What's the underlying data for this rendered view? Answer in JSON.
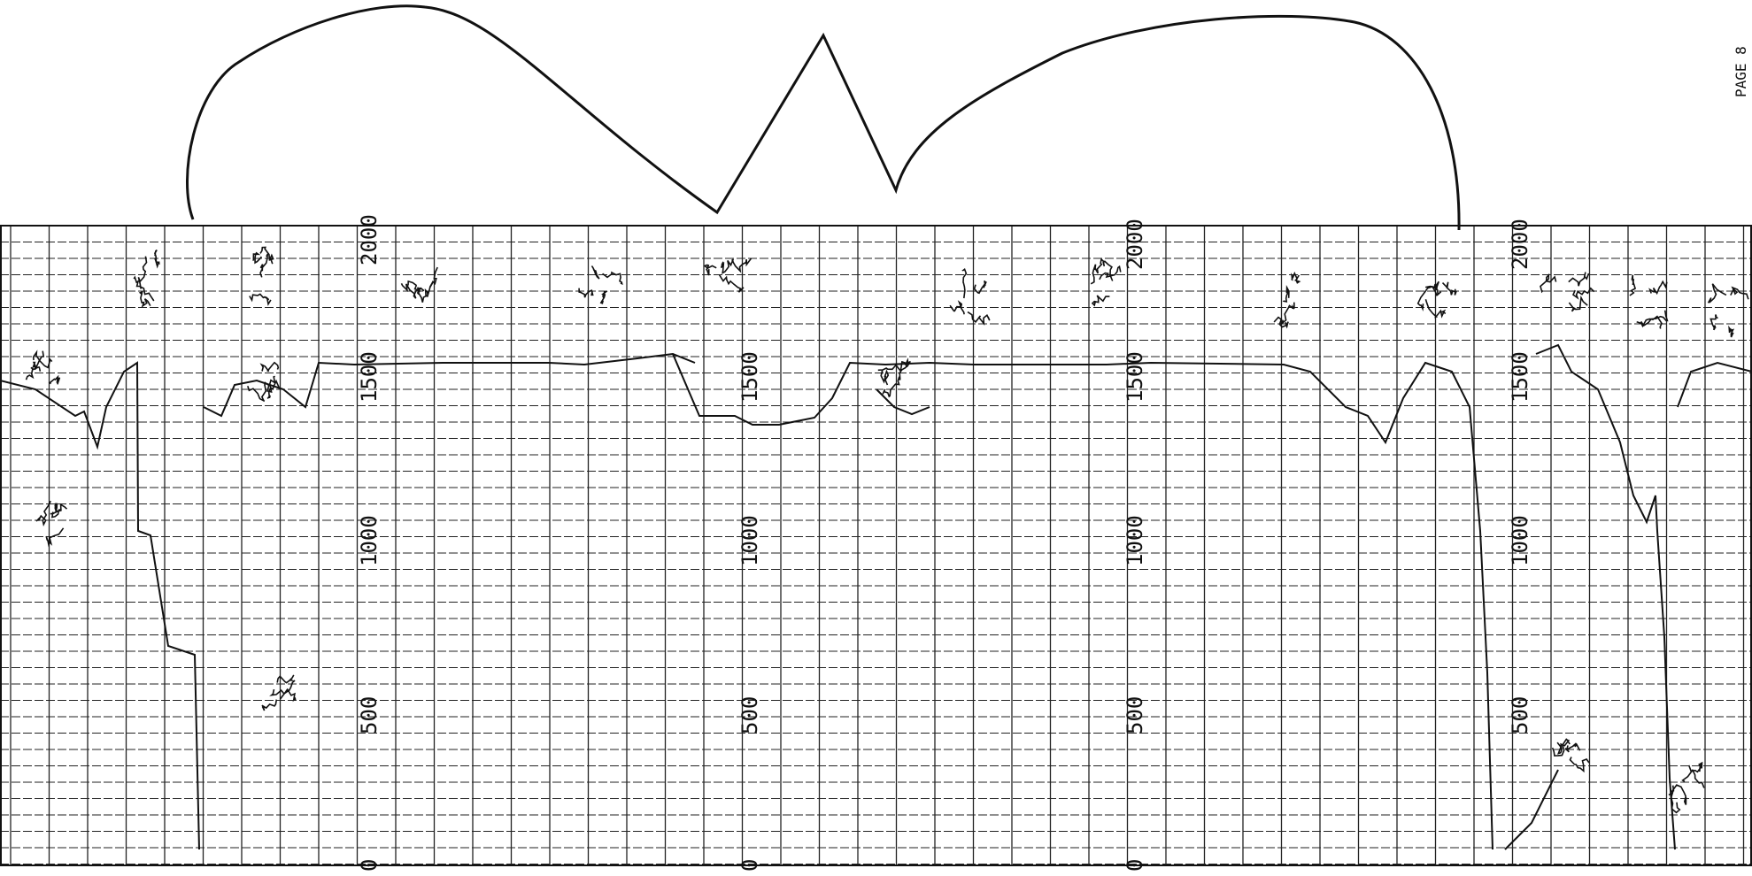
{
  "document": {
    "type": "strip chart recording sheet (scanned)",
    "page_ref": "PAGE 8",
    "ink_color": "#111111",
    "paper_color": "#ffffff",
    "scale_tick_labels": [
      "0",
      "500",
      "1000",
      "1500",
      "2000"
    ],
    "scale_blocks": [
      {
        "labels": [
          "0",
          "500",
          "1000",
          "1500",
          "2000"
        ]
      },
      {
        "labels": [
          "0",
          "500",
          "1000",
          "1500"
        ]
      },
      {
        "labels": [
          "0",
          "500",
          "1000",
          "1500",
          "2000"
        ]
      },
      {
        "labels": [
          "500",
          "1000",
          "1500",
          "2000"
        ]
      }
    ],
    "handwritten_annotations": "illegible handwritten notes drawn as ink scribbles"
  }
}
